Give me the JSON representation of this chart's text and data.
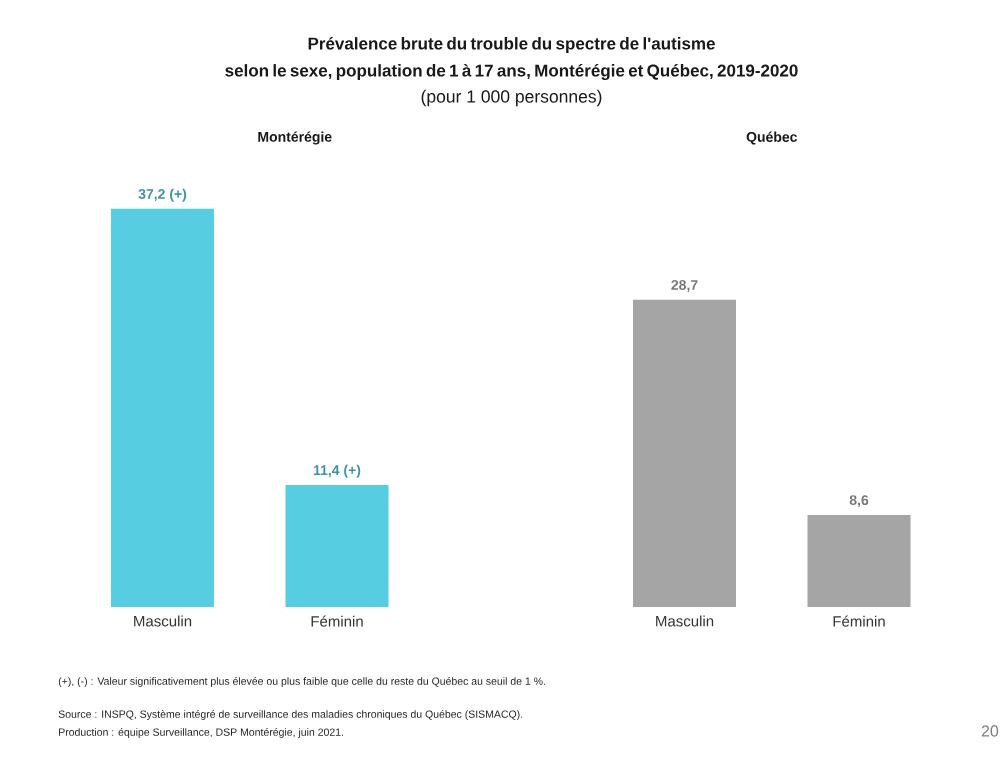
{
  "chart_data": [
    {
      "type": "other",
      "title": "Prévalence brute du trouble du spectre de l'autisme selon le sexe, population de 1 à 17 ans, Montérégie et Québec, 2019-2020",
      "subtitle": "(pour 1 000 personnes)",
      "annotations": [
        "(+), (-) : Valeur significativement plus élevée ou plus faible que celle du reste du Québec au seuil de 1 %.",
        "Source : INSPQ, Système intégré de surveillance des maladies chroniques du Québec (SISMACQ).",
        "Production : équipe Surveillance, DSP Montérégie, juin 2021.",
        "20"
      ]
    },
    {
      "type": "bar",
      "title": "Montérégie",
      "categories": [
        "Masculin",
        "Féminin"
      ],
      "values": [
        37.2,
        11.4
      ],
      "value_labels": [
        "37,2 (+)",
        "11,4 (+)"
      ],
      "color": "#56cde0"
    },
    {
      "type": "bar",
      "title": "Québec",
      "categories": [
        "Masculin",
        "Féminin"
      ],
      "values": [
        28.7,
        8.6
      ],
      "value_labels": [
        "28,7",
        "8,6"
      ],
      "color": "#a5a5a5"
    }
  ]
}
